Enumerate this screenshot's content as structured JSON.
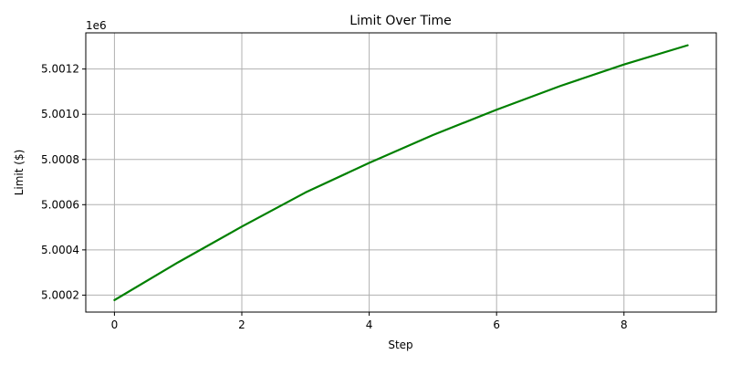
{
  "chart_data": {
    "type": "line",
    "title": "Limit Over Time",
    "xlabel": "Step",
    "ylabel": "Limit ($)",
    "y_offset_label": "1e6",
    "x": [
      0,
      1,
      2,
      3,
      4,
      5,
      6,
      7,
      8,
      9
    ],
    "series": [
      {
        "values": [
          5000178,
          5000345,
          5000503,
          5000654,
          5000785,
          5000908,
          5001020,
          5001125,
          5001220,
          5001305
        ],
        "color": "#008000"
      }
    ],
    "xlim": [
      -0.45,
      9.45
    ],
    "ylim": [
      5000125,
      5001360
    ],
    "x_ticks": [
      0,
      2,
      4,
      6,
      8
    ],
    "x_tick_labels": [
      "0",
      "2",
      "4",
      "6",
      "8"
    ],
    "y_ticks": [
      5000200,
      5000400,
      5000600,
      5000800,
      5001000,
      5001200
    ],
    "y_tick_labels": [
      "5.0002",
      "5.0004",
      "5.0006",
      "5.0008",
      "5.0010",
      "5.0012"
    ],
    "grid": true
  }
}
